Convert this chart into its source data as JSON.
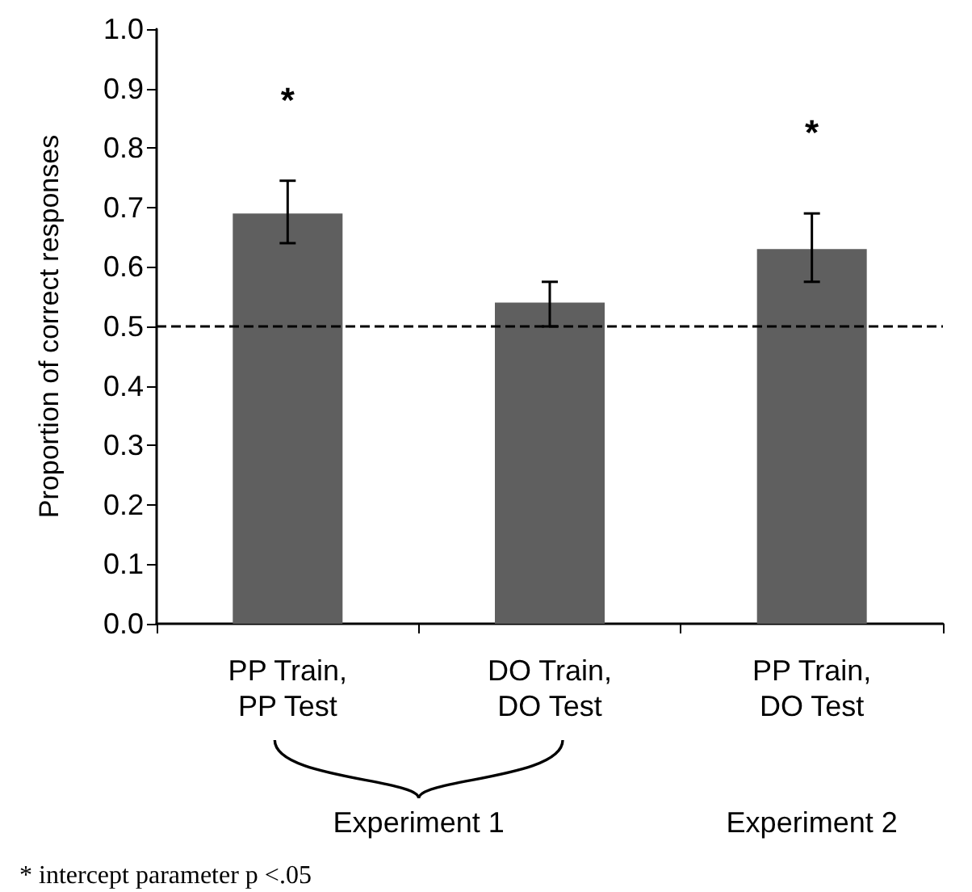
{
  "chart_data": {
    "type": "bar",
    "ylabel": "Proportion of correct responses",
    "categories": [
      "PP Train,\nPP Test",
      "DO Train,\nDO Test",
      "PP Train,\nDO Test"
    ],
    "values": [
      0.69,
      0.54,
      0.63
    ],
    "errors": [
      [
        0.64,
        0.745
      ],
      [
        0.5,
        0.575
      ],
      [
        0.575,
        0.69
      ]
    ],
    "color": "#5f5f5f",
    "ylim": [
      0,
      1
    ],
    "yticks": [
      {
        "value": 0,
        "label": "0.0"
      },
      {
        "value": 0.1,
        "label": "0.1"
      },
      {
        "value": 0.2,
        "label": "0.2"
      },
      {
        "value": 0.3,
        "label": "0.3"
      },
      {
        "value": 0.4,
        "label": "0.4"
      },
      {
        "value": 0.5,
        "label": "0.5"
      },
      {
        "value": 0.6,
        "label": "0.6"
      },
      {
        "value": 0.7,
        "label": "0.7"
      },
      {
        "value": 0.8,
        "label": "0.8"
      },
      {
        "value": 0.9,
        "label": "0.9"
      },
      {
        "value": 1,
        "label": "1.0"
      }
    ],
    "ref_lines": [
      {
        "axis": "y",
        "value": 0.5,
        "line_style": "dashed",
        "color": "#000000"
      }
    ],
    "annotations": [
      "*",
      "*",
      "Experiment 1",
      "Experiment 2",
      "* intercept parameter p <.05"
    ],
    "grid": false
  }
}
